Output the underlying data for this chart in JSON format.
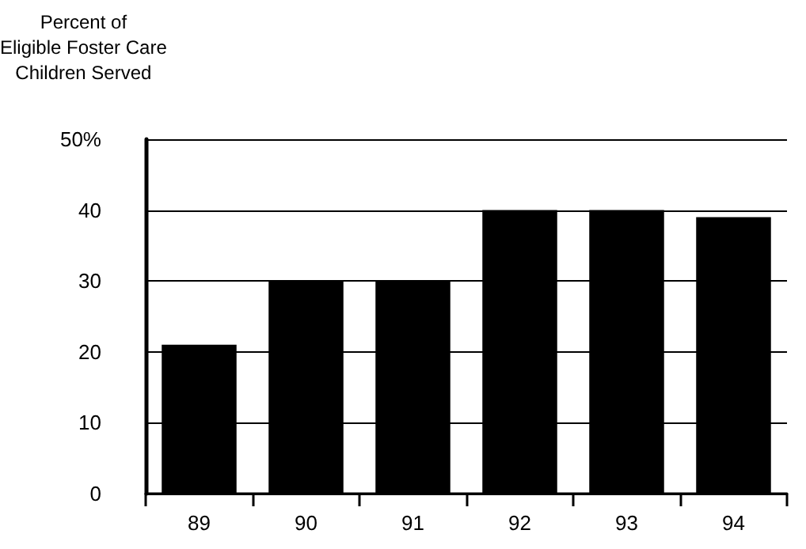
{
  "chart_data": {
    "type": "bar",
    "ylabel": "Percent of\nEligible Foster Care\nChildren Served",
    "categories": [
      "89",
      "90",
      "91",
      "92",
      "93",
      "94"
    ],
    "values": [
      21,
      30,
      30,
      40,
      40,
      39
    ],
    "color": "#000000",
    "ylim": [
      0,
      50
    ],
    "yticks": [
      0,
      10,
      20,
      30,
      40,
      {
        "value": 50,
        "label": "50%"
      }
    ],
    "grid": "y"
  }
}
